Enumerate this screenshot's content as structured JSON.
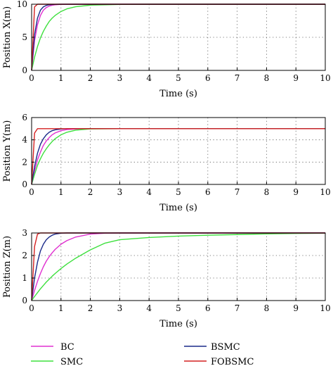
{
  "chart_data": [
    {
      "type": "line",
      "xlabel": "Time (s)",
      "ylabel": "Position X(m)",
      "xlim": [
        0,
        10
      ],
      "ylim": [
        0,
        10
      ],
      "xticks": [
        "0",
        "1",
        "2",
        "3",
        "4",
        "5",
        "6",
        "7",
        "8",
        "9",
        "10"
      ],
      "yticks": [
        "0",
        "5",
        "10"
      ],
      "grid": true,
      "x": [
        0,
        0.1,
        0.2,
        0.3,
        0.4,
        0.5,
        0.6,
        0.7,
        0.8,
        1.0,
        1.2,
        1.5,
        2.0,
        3.0,
        4.0,
        5.0,
        6.0,
        7.0,
        8.0,
        9.0,
        10.0
      ],
      "series": [
        {
          "name": "BC",
          "color": "#e030d0",
          "values": [
            0,
            4.5,
            6.9,
            8.3,
            9.1,
            9.5,
            9.72,
            9.85,
            9.92,
            9.98,
            9.99,
            10,
            10,
            10,
            10,
            10,
            10,
            10,
            10,
            10,
            10
          ]
        },
        {
          "name": "SMC",
          "color": "#3ee03e",
          "values": [
            0,
            2.0,
            3.6,
            4.9,
            5.9,
            6.7,
            7.4,
            7.9,
            8.3,
            8.9,
            9.3,
            9.62,
            9.86,
            9.97,
            10,
            10,
            10,
            10,
            10,
            10,
            10
          ]
        },
        {
          "name": "BSMC",
          "color": "#1a2a8a",
          "values": [
            0,
            5.4,
            7.9,
            9.1,
            9.6,
            9.82,
            9.92,
            9.96,
            9.98,
            10,
            10,
            10,
            10,
            10,
            10,
            10,
            10,
            10,
            10,
            10,
            10
          ]
        },
        {
          "name": "FOBSMC",
          "color": "#d42020",
          "values": [
            0,
            9.6,
            10,
            10,
            10,
            10,
            10,
            10,
            10,
            10,
            10,
            10,
            10,
            10,
            10,
            10,
            10,
            10,
            10,
            10,
            10
          ]
        }
      ]
    },
    {
      "type": "line",
      "xlabel": "Time (s)",
      "ylabel": "Position Y(m)",
      "xlim": [
        0,
        10
      ],
      "ylim": [
        0,
        6
      ],
      "xticks": [
        "0",
        "1",
        "2",
        "3",
        "4",
        "5",
        "6",
        "7",
        "8",
        "9",
        "10"
      ],
      "yticks": [
        "0",
        "2",
        "4",
        "6"
      ],
      "grid": true,
      "x": [
        0,
        0.1,
        0.2,
        0.3,
        0.4,
        0.5,
        0.6,
        0.7,
        0.8,
        1.0,
        1.2,
        1.5,
        2.0,
        3.0,
        4.0,
        5.0,
        6.0,
        7.0,
        8.0,
        9.0,
        10.0
      ],
      "series": [
        {
          "name": "BC",
          "color": "#e030d0",
          "values": [
            0,
            1.2,
            2.2,
            2.9,
            3.5,
            3.9,
            4.2,
            4.45,
            4.62,
            4.82,
            4.92,
            4.97,
            5.0,
            5.0,
            5.0,
            5.0,
            5.0,
            5.0,
            5.0,
            5.0,
            5.0
          ]
        },
        {
          "name": "SMC",
          "color": "#3ee03e",
          "values": [
            0,
            0.9,
            1.7,
            2.3,
            2.8,
            3.2,
            3.55,
            3.85,
            4.1,
            4.45,
            4.68,
            4.87,
            4.98,
            5.0,
            5.0,
            5.0,
            5.0,
            5.0,
            5.0,
            5.0,
            5.0
          ]
        },
        {
          "name": "BSMC",
          "color": "#1a2a8a",
          "values": [
            0,
            1.6,
            2.8,
            3.6,
            4.1,
            4.45,
            4.68,
            4.82,
            4.9,
            4.97,
            5.0,
            5.0,
            5.0,
            5.0,
            5.0,
            5.0,
            5.0,
            5.0,
            5.0,
            5.0,
            5.0
          ]
        },
        {
          "name": "FOBSMC",
          "color": "#d42020",
          "values": [
            0,
            4.6,
            5.0,
            5.0,
            5.0,
            5.0,
            5.0,
            5.0,
            5.0,
            5.0,
            5.0,
            5.0,
            5.0,
            5.0,
            5.0,
            5.0,
            5.0,
            5.0,
            5.0,
            5.0,
            5.0
          ]
        }
      ]
    },
    {
      "type": "line",
      "xlabel": "Time (s)",
      "ylabel": "Position Z(m)",
      "xlim": [
        0,
        10
      ],
      "ylim": [
        0,
        3
      ],
      "xticks": [
        "0",
        "1",
        "2",
        "3",
        "4",
        "5",
        "6",
        "7",
        "8",
        "9",
        "10"
      ],
      "yticks": [
        "0",
        "1",
        "2",
        "3"
      ],
      "grid": true,
      "x": [
        0,
        0.1,
        0.2,
        0.3,
        0.4,
        0.5,
        0.6,
        0.7,
        0.8,
        1.0,
        1.2,
        1.5,
        2.0,
        2.5,
        3.0,
        4.0,
        5.0,
        6.0,
        7.0,
        8.0,
        9.0,
        10.0
      ],
      "series": [
        {
          "name": "BC",
          "color": "#e030d0",
          "values": [
            0,
            0.45,
            0.85,
            1.2,
            1.5,
            1.75,
            1.95,
            2.12,
            2.27,
            2.5,
            2.66,
            2.82,
            2.95,
            2.99,
            3.0,
            3.0,
            3.0,
            3.0,
            3.0,
            3.0,
            3.0,
            3.0
          ]
        },
        {
          "name": "SMC",
          "color": "#3ee03e",
          "values": [
            0,
            0.18,
            0.35,
            0.52,
            0.67,
            0.82,
            0.95,
            1.08,
            1.2,
            1.42,
            1.62,
            1.88,
            2.25,
            2.55,
            2.7,
            2.8,
            2.86,
            2.9,
            2.93,
            2.96,
            2.98,
            2.99
          ]
        },
        {
          "name": "BSMC",
          "color": "#1a2a8a",
          "values": [
            0,
            1.0,
            1.7,
            2.2,
            2.5,
            2.7,
            2.82,
            2.9,
            2.95,
            2.99,
            3.0,
            3.0,
            3.0,
            3.0,
            3.0,
            3.0,
            3.0,
            3.0,
            3.0,
            3.0,
            3.0,
            3.0
          ]
        },
        {
          "name": "FOBSMC",
          "color": "#d42020",
          "values": [
            0,
            2.4,
            2.95,
            3.0,
            3.0,
            3.0,
            3.0,
            3.0,
            3.0,
            3.0,
            3.0,
            3.0,
            3.0,
            3.0,
            3.0,
            3.0,
            3.0,
            3.0,
            3.0,
            3.0,
            3.0,
            3.0
          ]
        }
      ]
    }
  ],
  "legend": {
    "placement": "bottom",
    "items": [
      {
        "name": "BC",
        "color": "#e030d0"
      },
      {
        "name": "BSMC",
        "color": "#1a2a8a"
      },
      {
        "name": "SMC",
        "color": "#3ee03e"
      },
      {
        "name": "FOBSMC",
        "color": "#d42020"
      }
    ]
  }
}
